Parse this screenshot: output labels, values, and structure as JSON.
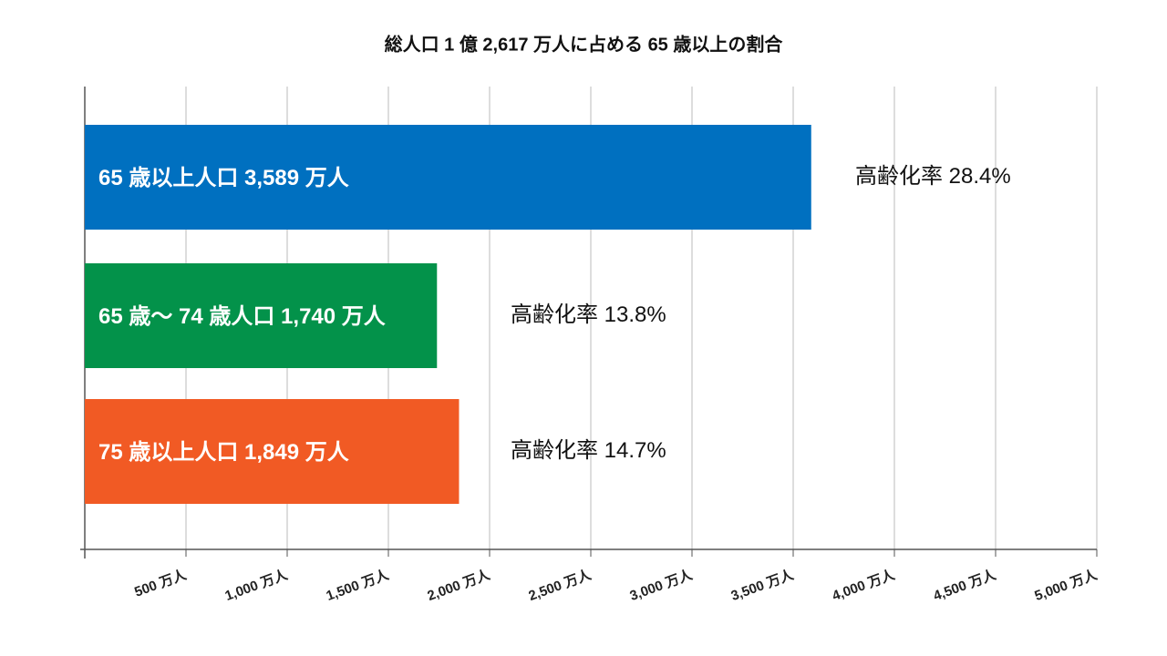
{
  "chart_data": {
    "type": "hbar",
    "title": "総人口 1 億 2,617 万人に占める 65 歳以上の割合",
    "values": [
      3589,
      1740,
      1849
    ],
    "value_labels": [
      "65 歳以上人口 3,589 万人",
      "65 歳～ 74 歳人口 1,740 万人",
      "75 歳以上人口 1,849 万人"
    ],
    "colors": [
      "#0070c0",
      "#03924a",
      "#f15a24"
    ],
    "annotations": [
      "高齢化率 28.4%",
      "高齢化率 13.8%",
      "高齢化率 14.7%"
    ],
    "xlim": [
      0,
      5000
    ],
    "xticks": [
      {
        "value": 500,
        "label": "500 万人"
      },
      {
        "value": 1000,
        "label": "1,000 万人"
      },
      {
        "value": 1500,
        "label": "1,500 万人"
      },
      {
        "value": 2000,
        "label": "2,000 万人"
      },
      {
        "value": 2500,
        "label": "2,500 万人"
      },
      {
        "value": 3000,
        "label": "3,000 万人"
      },
      {
        "value": 3500,
        "label": "3,500 万人"
      },
      {
        "value": 4000,
        "label": "4,000 万人"
      },
      {
        "value": 4500,
        "label": "4,500 万人"
      },
      {
        "value": 5000,
        "label": "5,000 万人"
      }
    ],
    "grid": true
  }
}
